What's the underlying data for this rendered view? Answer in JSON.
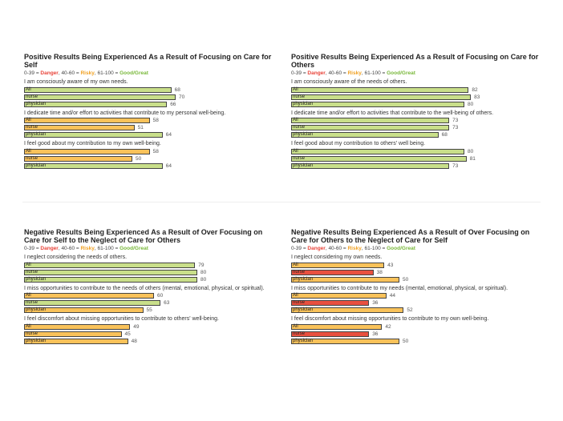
{
  "legend": {
    "danger_range": "0-39 = ",
    "danger_label": "Danger",
    "risky_range": ", 40-60 = ",
    "risky_label": "Risky",
    "good_range": ", 61-100 = ",
    "good_label": "Good/Great"
  },
  "colors": {
    "danger": "#e8503f",
    "risky": "#f9c25a",
    "good": "#c9df8a"
  },
  "chart_data": [
    {
      "type": "bar",
      "title": "Positive Results Being Experienced As a Result of Focusing on Care for Self",
      "xlim": [
        0,
        100
      ],
      "groups": [
        {
          "question": "I am consciously aware of my own needs.",
          "bars": [
            {
              "label": "All",
              "value": 68
            },
            {
              "label": "nurse",
              "value": 70
            },
            {
              "label": "physician",
              "value": 66
            }
          ]
        },
        {
          "question": "I dedicate time and/or effort to activities that contribute to my personal well-being.",
          "bars": [
            {
              "label": "All",
              "value": 58
            },
            {
              "label": "nurse",
              "value": 51
            },
            {
              "label": "physician",
              "value": 64
            }
          ]
        },
        {
          "question": "I feel good about my contribution to my own well-being.",
          "bars": [
            {
              "label": "All",
              "value": 58
            },
            {
              "label": "nurse",
              "value": 50
            },
            {
              "label": "physician",
              "value": 64
            }
          ]
        }
      ]
    },
    {
      "type": "bar",
      "title": "Positive Results Being Experienced As a Result of Focusing on Care for Others",
      "xlim": [
        0,
        100
      ],
      "groups": [
        {
          "question": "I am consciously aware of the needs of others.",
          "bars": [
            {
              "label": "All",
              "value": 82
            },
            {
              "label": "nurse",
              "value": 83
            },
            {
              "label": "physician",
              "value": 80
            }
          ]
        },
        {
          "question": "I dedicate time and/or effort to activities that contribute to the well-being of others.",
          "bars": [
            {
              "label": "All",
              "value": 73
            },
            {
              "label": "nurse",
              "value": 73
            },
            {
              "label": "physician",
              "value": 68
            }
          ]
        },
        {
          "question": "I feel good about my contribution to others' well being.",
          "bars": [
            {
              "label": "All",
              "value": 80
            },
            {
              "label": "nurse",
              "value": 81
            },
            {
              "label": "physician",
              "value": 73
            }
          ]
        }
      ]
    },
    {
      "type": "bar",
      "title": "Negative Results Being Experienced As a Result of Over Focusing on Care for Self to the Neglect of Care for Others",
      "xlim": [
        0,
        100
      ],
      "groups": [
        {
          "question": "I neglect considering the needs of others.",
          "bars": [
            {
              "label": "All",
              "value": 79
            },
            {
              "label": "nurse",
              "value": 80
            },
            {
              "label": "physician",
              "value": 80
            }
          ]
        },
        {
          "question": "I miss opportunities to contribute to the needs of others (mental, emotional, physical, or spiritual).",
          "bars": [
            {
              "label": "All",
              "value": 60
            },
            {
              "label": "nurse",
              "value": 63
            },
            {
              "label": "physician",
              "value": 55
            }
          ]
        },
        {
          "question": "I feel discomfort about missing opportunities to contribute to others' well-being.",
          "bars": [
            {
              "label": "All",
              "value": 49
            },
            {
              "label": "nurse",
              "value": 45
            },
            {
              "label": "physician",
              "value": 48
            }
          ]
        }
      ]
    },
    {
      "type": "bar",
      "title": "Negative Results Being Experienced As a Result of Over Focusing on Care for Others to the Neglect of Care for Self",
      "xlim": [
        0,
        100
      ],
      "groups": [
        {
          "question": "I neglect considering my own needs.",
          "bars": [
            {
              "label": "All",
              "value": 43
            },
            {
              "label": "nurse",
              "value": 38
            },
            {
              "label": "physician",
              "value": 50
            }
          ]
        },
        {
          "question": "I miss opportunities to contribute to my needs (mental, emotional, physical, or spiritual).",
          "bars": [
            {
              "label": "All",
              "value": 44
            },
            {
              "label": "nurse",
              "value": 36
            },
            {
              "label": "physician",
              "value": 52
            }
          ]
        },
        {
          "question": "I feel discomfort about missing opportunities to contribute to my own well-being.",
          "bars": [
            {
              "label": "All",
              "value": 42
            },
            {
              "label": "nurse",
              "value": 36
            },
            {
              "label": "physician",
              "value": 50
            }
          ]
        }
      ]
    }
  ]
}
